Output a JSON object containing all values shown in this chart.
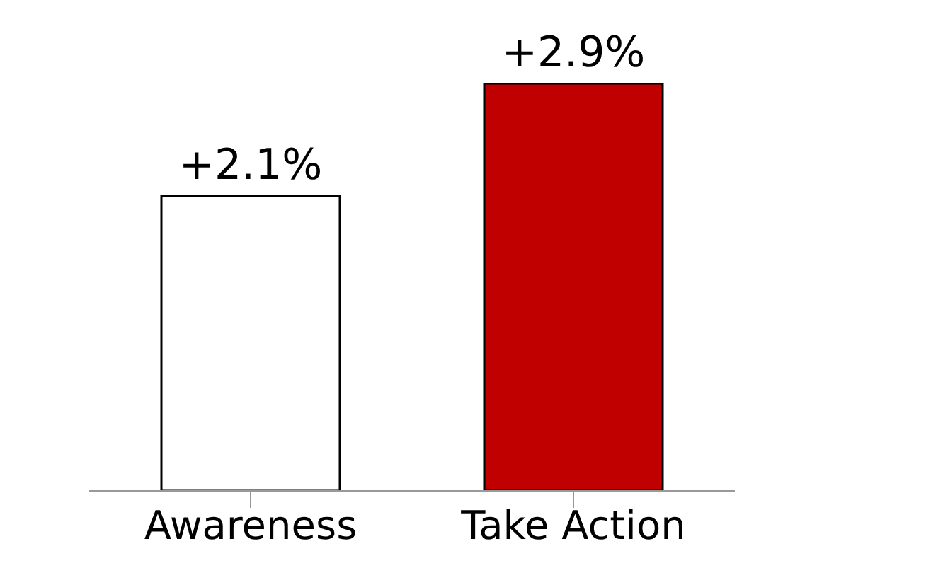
{
  "chart_data": {
    "type": "bar",
    "categories": [
      "Awareness",
      "Take Action"
    ],
    "values": [
      2.1,
      2.9
    ],
    "colors": [
      "#ffffff",
      "#c00000"
    ],
    "value_labels": [
      "+2.1%",
      "+2.9%"
    ]
  }
}
